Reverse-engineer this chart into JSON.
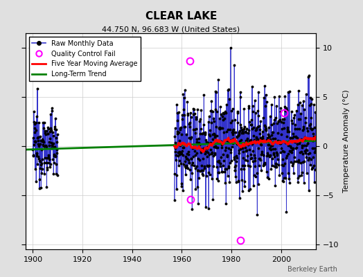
{
  "title": "CLEAR LAKE",
  "subtitle": "44.750 N, 96.683 W (United States)",
  "ylabel": "Temperature Anomaly (°C)",
  "credit": "Berkeley Earth",
  "xlim": [
    1897,
    2014
  ],
  "ylim": [
    -10.5,
    11.5
  ],
  "yticks": [
    -10,
    -5,
    0,
    5,
    10
  ],
  "xticks": [
    1900,
    1920,
    1940,
    1960,
    1980,
    2000
  ],
  "bg_color": "#e0e0e0",
  "plot_bg_color": "#ffffff",
  "line_color": "#3333cc",
  "seed": 12345,
  "early_start": 1900,
  "early_end": 1910,
  "late_start": 1957,
  "late_end": 2013,
  "early_std": 1.8,
  "late_std": 2.5,
  "trend_x": [
    1897,
    2014
  ],
  "trend_y": [
    -0.35,
    0.55
  ],
  "qc_fail_points": [
    [
      1963.3,
      8.7
    ],
    [
      1963.5,
      -5.4
    ],
    [
      1983.5,
      -9.6
    ],
    [
      2001.2,
      3.4
    ]
  ]
}
